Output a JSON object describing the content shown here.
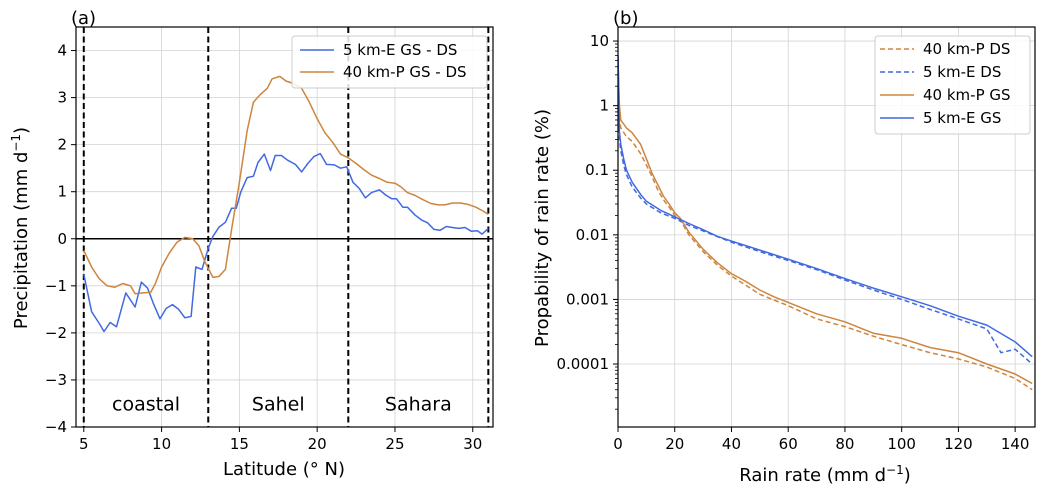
{
  "chart_data": [
    {
      "type": "line",
      "panel_label": "(a)",
      "xlabel": "Latitude (° N)",
      "ylabel_main": "Precipitation (mm d",
      "ylabel_sup": "−1",
      "ylabel_end": ")",
      "xlim": [
        4.5,
        31.3
      ],
      "ylim": [
        -4,
        4.5
      ],
      "xticks": [
        5,
        10,
        15,
        20,
        25,
        30
      ],
      "xtick_labels": [
        "5",
        "10",
        "15",
        "20",
        "25",
        "30"
      ],
      "yticks": [
        -4,
        -3,
        -2,
        -1,
        0,
        1,
        2,
        3,
        4
      ],
      "ytick_labels": [
        "−4",
        "−3",
        "−2",
        "−1",
        "0",
        "1",
        "2",
        "3",
        "4"
      ],
      "grid": true,
      "legend_position": "top-right",
      "hline": 0,
      "vlines_dashed": [
        5,
        13,
        22,
        31
      ],
      "region_labels": [
        {
          "text": "coastal",
          "x": 9,
          "y": -3.5
        },
        {
          "text": "Sahel",
          "x": 17.5,
          "y": -3.5
        },
        {
          "text": "Sahara",
          "x": 26.5,
          "y": -3.5
        }
      ],
      "series": [
        {
          "name": "5 km-E GS - DS",
          "color": "#4169e1",
          "style": "solid",
          "x": [
            5.0,
            5.5,
            6.0,
            6.3,
            6.7,
            7.1,
            7.7,
            8.3,
            8.7,
            9.1,
            9.5,
            9.9,
            10.3,
            10.7,
            11.1,
            11.5,
            11.9,
            12.2,
            12.6,
            13.0,
            13.3,
            13.7,
            14.1,
            14.5,
            14.8,
            15.1,
            15.5,
            15.9,
            16.2,
            16.6,
            17.0,
            17.3,
            17.7,
            18.1,
            18.6,
            19.0,
            19.4,
            19.8,
            20.2,
            20.6,
            21.1,
            21.5,
            21.9,
            22.3,
            22.7,
            23.1,
            23.5,
            24.0,
            24.4,
            24.8,
            25.1,
            25.5,
            25.8,
            26.3,
            26.7,
            27.1,
            27.5,
            27.9,
            28.3,
            28.7,
            29.1,
            29.5,
            29.9,
            30.3,
            30.6,
            31.0
          ],
          "y": [
            -0.75,
            -1.55,
            -1.8,
            -1.97,
            -1.78,
            -1.87,
            -1.15,
            -1.45,
            -0.92,
            -1.05,
            -1.4,
            -1.7,
            -1.48,
            -1.4,
            -1.5,
            -1.68,
            -1.65,
            -0.6,
            -0.65,
            -0.2,
            0.05,
            0.25,
            0.35,
            0.65,
            0.65,
            1.0,
            1.3,
            1.33,
            1.62,
            1.8,
            1.45,
            1.77,
            1.77,
            1.67,
            1.58,
            1.42,
            1.6,
            1.75,
            1.81,
            1.58,
            1.57,
            1.5,
            1.53,
            1.2,
            1.07,
            0.87,
            0.98,
            1.04,
            0.93,
            0.85,
            0.85,
            0.67,
            0.67,
            0.5,
            0.4,
            0.34,
            0.2,
            0.18,
            0.26,
            0.24,
            0.22,
            0.24,
            0.16,
            0.17,
            0.1,
            0.22
          ]
        },
        {
          "name": "40 km-P GS - DS",
          "color": "#cd853f",
          "style": "solid",
          "x": [
            5.0,
            5.5,
            6.0,
            6.5,
            7.0,
            7.5,
            8.0,
            8.3,
            8.8,
            9.3,
            9.6,
            10.0,
            10.5,
            11.0,
            11.5,
            12.0,
            12.4,
            12.8,
            13.3,
            13.7,
            14.1,
            14.5,
            15.0,
            15.5,
            15.9,
            16.3,
            16.8,
            17.1,
            17.6,
            18.0,
            18.5,
            19.0,
            19.5,
            20.0,
            20.5,
            21.0,
            21.5,
            22.0,
            22.5,
            23.0,
            23.5,
            24.0,
            24.5,
            25.0,
            25.4,
            25.8,
            26.3,
            26.8,
            27.3,
            27.8,
            28.2,
            28.7,
            29.2,
            29.7,
            30.2,
            30.6,
            31.0
          ],
          "y": [
            -0.25,
            -0.6,
            -0.85,
            -1.0,
            -1.03,
            -0.95,
            -1.0,
            -1.17,
            -1.15,
            -1.14,
            -0.95,
            -0.6,
            -0.3,
            -0.07,
            0.03,
            0.0,
            -0.15,
            -0.5,
            -0.82,
            -0.8,
            -0.65,
            0.2,
            1.2,
            2.3,
            2.9,
            3.05,
            3.2,
            3.4,
            3.45,
            3.35,
            3.3,
            3.2,
            2.9,
            2.55,
            2.25,
            2.05,
            1.8,
            1.72,
            1.6,
            1.47,
            1.35,
            1.28,
            1.2,
            1.18,
            1.1,
            0.98,
            0.92,
            0.83,
            0.75,
            0.72,
            0.72,
            0.76,
            0.76,
            0.73,
            0.67,
            0.6,
            0.52
          ]
        }
      ]
    },
    {
      "type": "line",
      "panel_label": "(b)",
      "xlabel_main": "Rain rate (mm d",
      "xlabel_sup": "−1",
      "xlabel_end": ")",
      "ylabel": "Propability of rain rate (%)",
      "yscale": "log",
      "xlim": [
        0,
        147
      ],
      "ylim": [
        1.06e-05,
        16.5
      ],
      "xticks": [
        0,
        20,
        40,
        60,
        80,
        100,
        120,
        140
      ],
      "xtick_labels": [
        "0",
        "20",
        "40",
        "60",
        "80",
        "100",
        "120",
        "140"
      ],
      "yticks": [
        10,
        1,
        0.1,
        0.01,
        0.001,
        0.0001
      ],
      "ytick_labels": [
        "10",
        "1",
        "0.1",
        "0.01",
        "0.001",
        "0.0001"
      ],
      "grid": true,
      "legend_position": "top-right",
      "series": [
        {
          "name": "40 km-P DS",
          "color": "#cd853f",
          "style": "dashed",
          "x": [
            0,
            0.5,
            1,
            3,
            5,
            8,
            10,
            12,
            14,
            16,
            18,
            20,
            22,
            25,
            30,
            35,
            40,
            50,
            60,
            70,
            80,
            90,
            100,
            110,
            120,
            130,
            140,
            146
          ],
          "y": [
            5,
            0.6,
            0.45,
            0.33,
            0.28,
            0.18,
            0.12,
            0.08,
            0.05,
            0.035,
            0.027,
            0.02,
            0.017,
            0.01,
            0.0055,
            0.0034,
            0.0023,
            0.0012,
            0.0008,
            0.0005,
            0.00038,
            0.00027,
            0.0002,
            0.00015,
            0.00012,
            9e-05,
            6e-05,
            4e-05
          ]
        },
        {
          "name": "5 km-E DS",
          "color": "#4169e1",
          "style": "dashed",
          "x": [
            0,
            0.5,
            1,
            2,
            3,
            5,
            8,
            10,
            15,
            20,
            25,
            30,
            40,
            50,
            60,
            70,
            80,
            90,
            100,
            110,
            120,
            130,
            135,
            140,
            146
          ],
          "y": [
            6,
            0.3,
            0.2,
            0.12,
            0.085,
            0.055,
            0.037,
            0.03,
            0.022,
            0.018,
            0.014,
            0.0115,
            0.0077,
            0.0055,
            0.004,
            0.0029,
            0.002,
            0.0014,
            0.001,
            0.0007,
            0.0005,
            0.00035,
            0.00015,
            0.00017,
            0.0001
          ]
        },
        {
          "name": "40 km-P GS",
          "color": "#cd853f",
          "style": "solid",
          "x": [
            0,
            0.5,
            1,
            3,
            5,
            8,
            10,
            12,
            14,
            16,
            18,
            20,
            22,
            25,
            30,
            35,
            40,
            45,
            50,
            55,
            60,
            70,
            80,
            90,
            100,
            110,
            120,
            130,
            140,
            146
          ],
          "y": [
            5,
            1.0,
            0.6,
            0.45,
            0.38,
            0.25,
            0.15,
            0.09,
            0.06,
            0.04,
            0.03,
            0.022,
            0.018,
            0.011,
            0.006,
            0.0037,
            0.0025,
            0.0019,
            0.0014,
            0.0011,
            0.0009,
            0.0006,
            0.00045,
            0.0003,
            0.00025,
            0.00018,
            0.00015,
            0.0001,
            7e-05,
            5e-05
          ]
        },
        {
          "name": "5 km-E GS",
          "color": "#4169e1",
          "style": "solid",
          "x": [
            0,
            0.5,
            1,
            2,
            3,
            5,
            8,
            10,
            15,
            20,
            25,
            30,
            35,
            40,
            50,
            60,
            70,
            80,
            90,
            100,
            110,
            120,
            130,
            140,
            146
          ],
          "y": [
            6,
            0.4,
            0.25,
            0.15,
            0.1,
            0.065,
            0.042,
            0.033,
            0.024,
            0.019,
            0.015,
            0.012,
            0.0095,
            0.008,
            0.0058,
            0.0042,
            0.003,
            0.0021,
            0.0015,
            0.0011,
            0.0008,
            0.00055,
            0.0004,
            0.00022,
            0.00013
          ]
        }
      ]
    }
  ]
}
